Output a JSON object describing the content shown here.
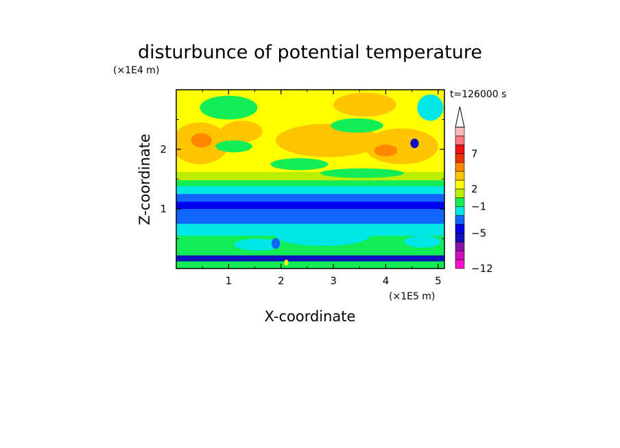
{
  "chart_data": {
    "type": "heatmap",
    "title": "disturbunce of potential temperature",
    "time_label": "t=126000 s",
    "xlabel": "X-coordinate",
    "ylabel": "Z-coordinate",
    "x_unit": "(×1E5 m)",
    "y_unit": "(×1E4 m)",
    "x_ticks": [
      "1",
      "2",
      "3",
      "4",
      "5"
    ],
    "y_ticks": [
      "1",
      "2"
    ],
    "xlim": [
      0,
      5.12
    ],
    "ylim": [
      0,
      3.0
    ],
    "colorbar": {
      "tick_labels": [
        "7",
        "2",
        "−1",
        "−5",
        "−12"
      ],
      "colors": [
        "#ff11cc",
        "#cc11bb",
        "#8811aa",
        "#1111bb",
        "#0000ee",
        "#1166ff",
        "#00e5e5",
        "#11ee55",
        "#bbee00",
        "#ffff00",
        "#ffc400",
        "#ff8800",
        "#ee3300",
        "#ee1111",
        "#ff7777",
        "#ffbbbb"
      ],
      "extend_max": true
    },
    "bands": [
      {
        "z_top": 0.12,
        "color": "#11ee55"
      },
      {
        "z_top": 0.22,
        "color": "#1111bb"
      },
      {
        "z_top": 0.55,
        "color": "#11ee55"
      },
      {
        "z_top": 0.75,
        "color": "#00e5e5"
      },
      {
        "z_top": 1.0,
        "color": "#1166ff"
      },
      {
        "z_top": 1.12,
        "color": "#0000ee"
      },
      {
        "z_top": 1.25,
        "color": "#1166ff"
      },
      {
        "z_top": 1.38,
        "color": "#00e5e5"
      },
      {
        "z_top": 1.48,
        "color": "#11ee55"
      },
      {
        "z_top": 1.62,
        "color": "#bbee00"
      },
      {
        "z_top": 3.0,
        "color": "#ffff00"
      }
    ],
    "blobs": [
      {
        "x": 0.45,
        "z": 2.1,
        "rx": 0.55,
        "rz": 0.35,
        "color": "#ffc400"
      },
      {
        "x": 0.48,
        "z": 2.15,
        "rx": 0.2,
        "rz": 0.12,
        "color": "#ff8800"
      },
      {
        "x": 1.0,
        "z": 2.7,
        "rx": 0.55,
        "rz": 0.2,
        "color": "#11ee55"
      },
      {
        "x": 1.25,
        "z": 2.3,
        "rx": 0.4,
        "rz": 0.18,
        "color": "#ffc400"
      },
      {
        "x": 1.1,
        "z": 2.05,
        "rx": 0.35,
        "rz": 0.1,
        "color": "#11ee55"
      },
      {
        "x": 2.9,
        "z": 2.15,
        "rx": 1.0,
        "rz": 0.28,
        "color": "#ffc400"
      },
      {
        "x": 3.6,
        "z": 2.75,
        "rx": 0.6,
        "rz": 0.2,
        "color": "#ffc400"
      },
      {
        "x": 3.45,
        "z": 2.4,
        "rx": 0.5,
        "rz": 0.12,
        "color": "#11ee55"
      },
      {
        "x": 4.3,
        "z": 2.05,
        "rx": 0.7,
        "rz": 0.3,
        "color": "#ffc400"
      },
      {
        "x": 4.0,
        "z": 1.98,
        "rx": 0.22,
        "rz": 0.1,
        "color": "#ff8800"
      },
      {
        "x": 4.85,
        "z": 2.7,
        "rx": 0.25,
        "rz": 0.22,
        "color": "#00e5e5"
      },
      {
        "x": 4.55,
        "z": 2.1,
        "rx": 0.08,
        "rz": 0.08,
        "color": "#1111bb"
      },
      {
        "x": 2.35,
        "z": 1.75,
        "rx": 0.55,
        "rz": 0.1,
        "color": "#11ee55"
      },
      {
        "x": 3.55,
        "z": 1.6,
        "rx": 0.8,
        "rz": 0.08,
        "color": "#11ee55"
      },
      {
        "x": 2.8,
        "z": 0.55,
        "rx": 0.9,
        "rz": 0.17,
        "color": "#00e5e5"
      },
      {
        "x": 1.55,
        "z": 0.4,
        "rx": 0.45,
        "rz": 0.1,
        "color": "#00e5e5"
      },
      {
        "x": 4.7,
        "z": 0.45,
        "rx": 0.35,
        "rz": 0.1,
        "color": "#00e5e5"
      },
      {
        "x": 1.9,
        "z": 0.42,
        "rx": 0.08,
        "rz": 0.09,
        "color": "#1166ff"
      },
      {
        "x": 2.1,
        "z": 0.1,
        "rx": 0.04,
        "rz": 0.05,
        "color": "#ffff00"
      }
    ]
  }
}
